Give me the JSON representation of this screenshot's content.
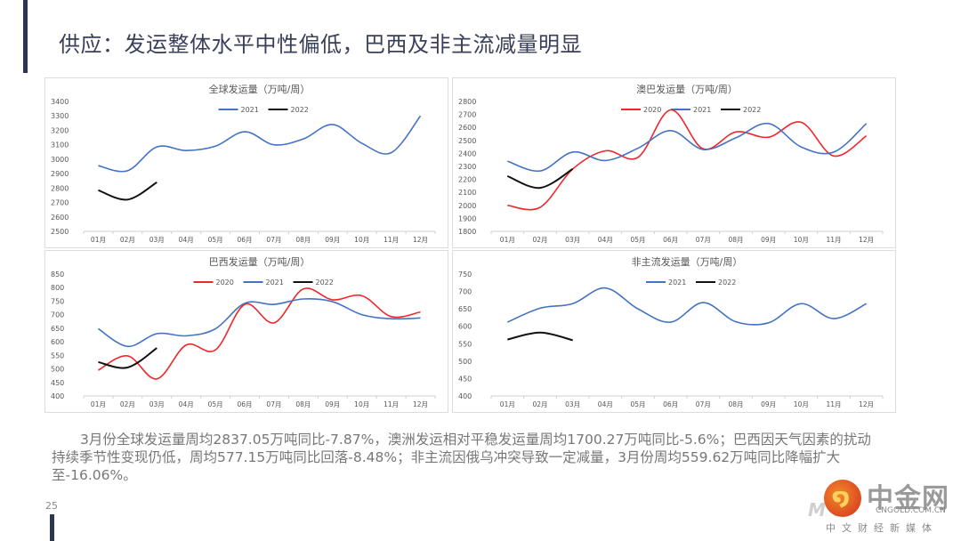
{
  "page": {
    "title": "供应：发运整体水平中性偏低，巴西及非主流减量明显",
    "body": "3月份全球发运量周均2837.05万吨同比-7.87%，澳洲发运相对平稳发运量周均1700.27万吨同比-5.6%；巴西因天气因素的扰动持续季节性变现仍低，周均577.15万吨同比回落-8.48%；非主流因俄乌冲突导致一定减量，3月份周均559.62万吨同比降幅扩大至-16.06%。",
    "page_number": "25",
    "logo": {
      "main": "中金网",
      "url": "CNGOLD.COM.CN",
      "sub": "中文财经新媒体",
      "ghost": "M e"
    }
  },
  "colors": {
    "c2020": "#f0262a",
    "c2021": "#4472c4",
    "c2022": "#111111"
  },
  "chart_data": [
    {
      "id": "global",
      "type": "line",
      "title": "全球发运量（万吨/周）",
      "categories": [
        "01月",
        "02月",
        "03月",
        "04月",
        "05月",
        "06月",
        "07月",
        "08月",
        "09月",
        "10月",
        "11月",
        "12月"
      ],
      "ylim": [
        2500,
        3400
      ],
      "yticks": [
        2500,
        2600,
        2700,
        2800,
        2900,
        3000,
        3100,
        3200,
        3300,
        3400
      ],
      "legend": "top-center",
      "grid": false,
      "series": [
        {
          "name": "2021",
          "color_key": "c2021",
          "values": [
            2955,
            2920,
            3085,
            3060,
            3090,
            3190,
            3100,
            3140,
            3240,
            3110,
            3045,
            3300
          ]
        },
        {
          "name": "2022",
          "color_key": "c2022",
          "values": [
            2785,
            2720,
            2840
          ]
        }
      ]
    },
    {
      "id": "aus-bra",
      "type": "line",
      "title": "澳巴发运量（万吨/周）",
      "categories": [
        "01月",
        "02月",
        "03月",
        "04月",
        "05月",
        "06月",
        "07月",
        "08月",
        "09月",
        "10月",
        "11月",
        "12月"
      ],
      "ylim": [
        1800,
        2800
      ],
      "yticks": [
        1800,
        1900,
        2000,
        2100,
        2200,
        2300,
        2400,
        2500,
        2600,
        2700,
        2800
      ],
      "legend": "top-center",
      "grid": false,
      "series": [
        {
          "name": "2020",
          "color_key": "c2020",
          "values": [
            2000,
            1985,
            2280,
            2420,
            2370,
            2735,
            2435,
            2565,
            2525,
            2640,
            2380,
            2535
          ]
        },
        {
          "name": "2021",
          "color_key": "c2021",
          "values": [
            2340,
            2265,
            2410,
            2345,
            2440,
            2575,
            2430,
            2520,
            2630,
            2450,
            2410,
            2630
          ]
        },
        {
          "name": "2022",
          "color_key": "c2022",
          "values": [
            2225,
            2135,
            2280
          ]
        }
      ]
    },
    {
      "id": "brazil",
      "type": "line",
      "title": "巴西发运量（万吨/周）",
      "categories": [
        "01月",
        "02月",
        "03月",
        "04月",
        "05月",
        "06月",
        "07月",
        "08月",
        "09月",
        "10月",
        "11月",
        "12月"
      ],
      "ylim": [
        400,
        850
      ],
      "yticks": [
        400,
        450,
        500,
        550,
        600,
        650,
        700,
        750,
        800,
        850
      ],
      "legend": "top-center",
      "grid": false,
      "series": [
        {
          "name": "2020",
          "color_key": "c2020",
          "values": [
            495,
            548,
            463,
            588,
            570,
            738,
            670,
            795,
            755,
            770,
            693,
            710
          ]
        },
        {
          "name": "2021",
          "color_key": "c2021",
          "values": [
            648,
            583,
            630,
            622,
            648,
            742,
            738,
            758,
            748,
            700,
            685,
            688
          ]
        },
        {
          "name": "2022",
          "color_key": "c2022",
          "values": [
            525,
            505,
            577
          ]
        }
      ]
    },
    {
      "id": "non-mainstream",
      "type": "line",
      "title": "非主流发运量（万吨/周）",
      "categories": [
        "01月",
        "02月",
        "03月",
        "04月",
        "05月",
        "06月",
        "07月",
        "08月",
        "09月",
        "10月",
        "11月",
        "12月"
      ],
      "ylim": [
        400,
        750
      ],
      "yticks": [
        400,
        450,
        500,
        550,
        600,
        650,
        700,
        750
      ],
      "legend": "top-center",
      "grid": false,
      "series": [
        {
          "name": "2021",
          "color_key": "c2021",
          "values": [
            612,
            652,
            665,
            710,
            650,
            612,
            668,
            613,
            610,
            665,
            622,
            665
          ]
        },
        {
          "name": "2022",
          "color_key": "c2022",
          "values": [
            562,
            582,
            560
          ]
        }
      ]
    }
  ]
}
